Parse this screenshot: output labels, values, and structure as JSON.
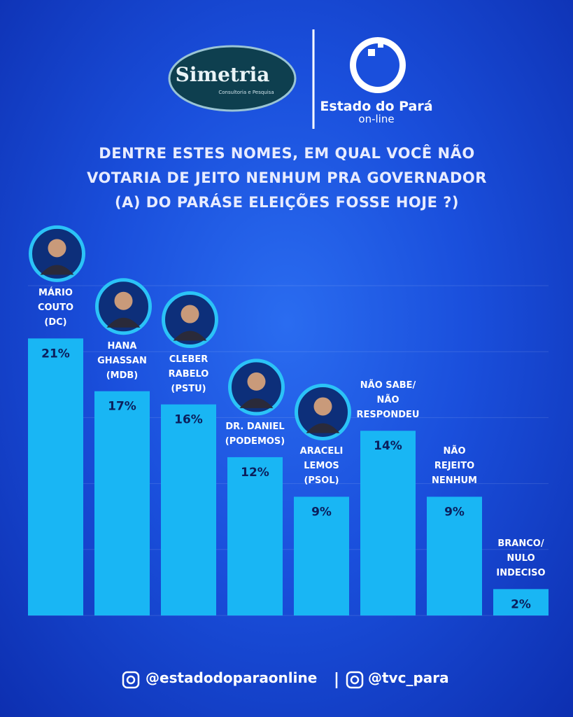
{
  "logos": {
    "simetria": "Simetria",
    "simetria_sub": "Consultoria e Pesquisa",
    "estado": "Estado do Pará",
    "estado_sub": "on-line"
  },
  "chart_data": {
    "type": "bar",
    "title": "DENTRE ESTES NOMES, EM QUAL VOCÊ NÃO\nVOTARIA DE JEITO NENHUM PRA GOVERNADOR\n(A) DO PARÁSE ELEIÇÕES FOSSE HOJE ?)",
    "categories": [
      "MÁRIO\nCOUTO\n(DC)",
      "HANA\nGHASSAN\n(MDB)",
      "CLEBER\nRABELO\n(PSTU)",
      "DR. DANIEL\n(PODEMOS)",
      "ARACELI\nLEMOS\n(PSOL)",
      "NÃO SABE/\nNÃO\nRESPONDEU",
      "NÃO\nREJEITO\nNENHUM",
      "BRANCO/\nNULO\nINDECISO"
    ],
    "values": [
      21,
      17,
      16,
      12,
      9,
      14,
      9,
      2
    ],
    "value_labels": [
      "21%",
      "17%",
      "16%",
      "12%",
      "9%",
      "14%",
      "9%",
      "2%"
    ],
    "color": "#19b6f4",
    "ylim": [
      0,
      25
    ],
    "yticks": [
      0,
      5,
      10,
      15,
      20,
      25
    ],
    "grid": true
  },
  "footer": [
    "@estadodoparaonline",
    "@tvc_para"
  ]
}
